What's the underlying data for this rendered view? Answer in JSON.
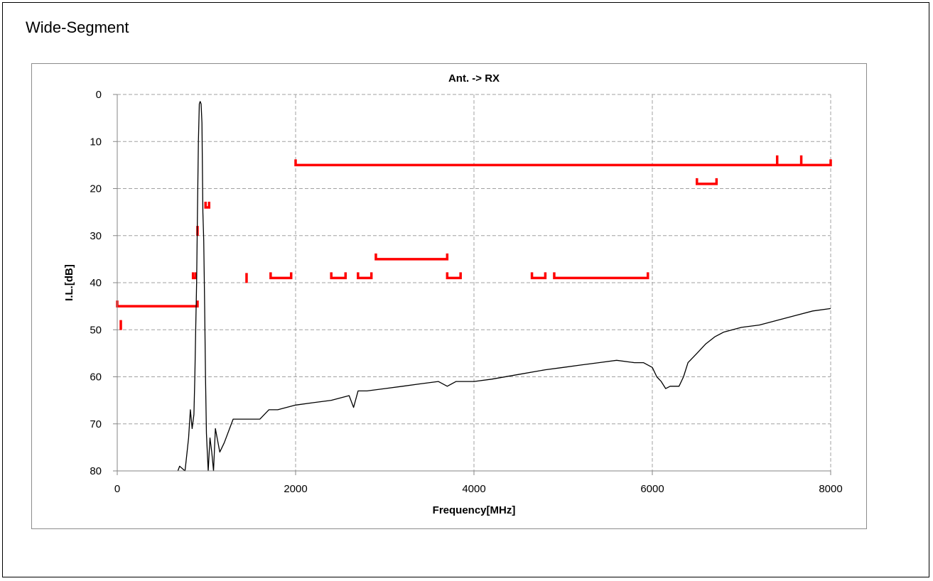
{
  "page": {
    "heading": "Wide-Segment"
  },
  "chart_data": {
    "type": "line",
    "title": "Ant. -> RX",
    "xlabel": "Frequency[MHz]",
    "ylabel": "I.L.[dB]",
    "xlim": [
      0,
      8000
    ],
    "ylim": [
      0,
      80
    ],
    "y_inverted": true,
    "xticks": [
      0,
      2000,
      4000,
      6000,
      8000
    ],
    "yticks": [
      0,
      10,
      20,
      30,
      40,
      50,
      60,
      70,
      80
    ],
    "grid": true,
    "legend": "none",
    "colors": {
      "measurement": "#000000",
      "spec": "#ff0000",
      "grid": "#a0a0a0"
    },
    "series": [
      {
        "type": "line",
        "x": [
          680,
          700,
          760,
          800,
          820,
          840,
          860,
          870,
          880,
          890,
          900,
          910,
          920,
          930,
          940,
          950,
          960,
          970,
          980,
          990,
          1000,
          1020,
          1040,
          1060,
          1080,
          1100,
          1150,
          1200,
          1300,
          1400,
          1500,
          1600,
          1700,
          1800,
          2000,
          2200,
          2400,
          2600,
          2650,
          2700,
          2800,
          3000,
          3200,
          3400,
          3600,
          3700,
          3800,
          4000,
          4200,
          4500,
          4800,
          5000,
          5200,
          5400,
          5600,
          5800,
          5900,
          6000,
          6050,
          6100,
          6150,
          6200,
          6300,
          6350,
          6400,
          6500,
          6600,
          6700,
          6800,
          7000,
          7200,
          7400,
          7600,
          7800,
          8000
        ],
        "y": [
          80,
          79,
          80,
          73,
          67,
          71,
          68,
          60,
          50,
          40,
          25,
          10,
          2,
          1.5,
          2,
          6,
          25,
          31,
          45,
          60,
          72,
          80,
          73,
          76,
          80,
          71,
          76,
          74,
          69,
          69,
          69,
          69,
          67,
          67,
          66,
          65.5,
          65,
          64,
          66.5,
          63,
          63,
          62.5,
          62,
          61.5,
          61,
          62,
          61,
          61,
          60.5,
          59.5,
          58.5,
          58,
          57.5,
          57,
          56.5,
          57,
          57,
          58,
          60,
          61,
          62.5,
          62,
          62,
          60,
          57,
          55,
          53,
          51.5,
          50.5,
          49.5,
          49,
          48,
          47,
          46,
          45.5
        ]
      },
      {
        "type": "spec",
        "segments": [
          {
            "x": [
              0,
              900
            ],
            "y": 45
          },
          {
            "x": [
              40,
              40
            ],
            "y": 49
          },
          {
            "x": [
              850,
              880
            ],
            "y": 39
          },
          {
            "x": [
              900,
              900
            ],
            "y": 29
          },
          {
            "x": [
              990,
              1030
            ],
            "y": 24
          },
          {
            "x": [
              1450,
              1450
            ],
            "y": 39
          },
          {
            "x": [
              1720,
              1950
            ],
            "y": 39
          },
          {
            "x": [
              2400,
              2560
            ],
            "y": 39
          },
          {
            "x": [
              2700,
              2850
            ],
            "y": 39
          },
          {
            "x": [
              2900,
              3700
            ],
            "y": 35
          },
          {
            "x": [
              3700,
              3850
            ],
            "y": 39
          },
          {
            "x": [
              4650,
              4800
            ],
            "y": 39
          },
          {
            "x": [
              4900,
              5950
            ],
            "y": 39
          },
          {
            "x": [
              2000,
              8000
            ],
            "y": 15
          },
          {
            "x": [
              7400,
              7400
            ],
            "y": 14
          },
          {
            "x": [
              7670,
              7670
            ],
            "y": 14
          },
          {
            "x": [
              6500,
              6720
            ],
            "y": 19
          }
        ]
      }
    ]
  }
}
